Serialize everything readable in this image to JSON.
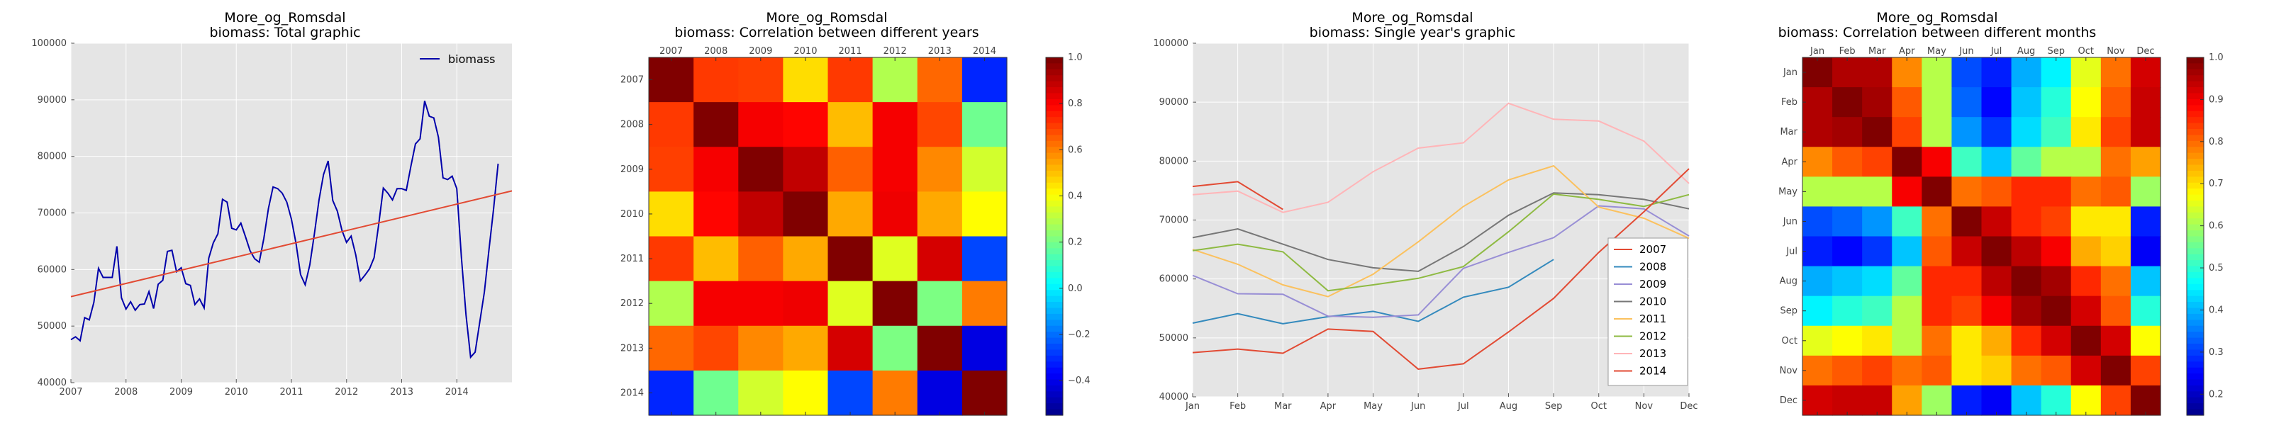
{
  "chart_data": [
    {
      "type": "line",
      "title": "More_og_Romsdal",
      "subtitle": "biomass: Total graphic",
      "xlabel": "",
      "ylabel": "",
      "xlim": [
        2007,
        2015
      ],
      "ylim": [
        40000,
        100000
      ],
      "x_ticks": [
        "2007",
        "2008",
        "2009",
        "2010",
        "2011",
        "2012",
        "2013",
        "2014"
      ],
      "y_ticks": [
        "40000",
        "50000",
        "60000",
        "70000",
        "80000",
        "90000",
        "100000"
      ],
      "grid": true,
      "legend": "top-right",
      "series": [
        {
          "name": "biomass",
          "color": "#0000aa",
          "x_start": 2007.0,
          "x_step": 0.08333,
          "values": [
            47600,
            48100,
            47400,
            51500,
            51100,
            54200,
            60200,
            58600,
            58600,
            58600,
            64100,
            55000,
            53000,
            54300,
            52800,
            53800,
            53900,
            56100,
            53100,
            57400,
            58100,
            63200,
            63400,
            59600,
            60300,
            57500,
            57200,
            53800,
            54800,
            53200,
            62000,
            64700,
            66300,
            72400,
            71900,
            67300,
            67000,
            68200,
            65800,
            63300,
            61900,
            61300,
            65500,
            70800,
            74600,
            74300,
            73500,
            71900,
            68900,
            64600,
            59100,
            57300,
            60800,
            66300,
            72300,
            76800,
            79200,
            72200,
            70300,
            66900,
            64800,
            65900,
            62600,
            58000,
            59000,
            60100,
            62100,
            68000,
            74400,
            73500,
            72300,
            74300,
            74300,
            74000,
            78200,
            82200,
            83100,
            89800,
            87100,
            86800,
            83400,
            76200,
            75900,
            76500,
            74300,
            62200,
            52000,
            44500,
            45400,
            50700,
            56000,
            63500,
            70700,
            78700
          ]
        },
        {
          "name": "trend",
          "color": "#e24a33",
          "x": [
            2007,
            2015
          ],
          "values": [
            55200,
            73900
          ]
        }
      ]
    },
    {
      "type": "heatmap",
      "title": "More_og_Romsdal",
      "subtitle": "biomass: Correlation between different years",
      "x_labels": [
        "2007",
        "2008",
        "2009",
        "2010",
        "2011",
        "2012",
        "2013",
        "2014"
      ],
      "y_labels": [
        "2007",
        "2008",
        "2009",
        "2010",
        "2011",
        "2012",
        "2013",
        "2014"
      ],
      "colorbar_range": [
        -0.55,
        1.0
      ],
      "colorbar_ticks": [
        "1.0",
        "0.8",
        "0.6",
        "0.4",
        "0.2",
        "0.0",
        "−0.2",
        "−0.4"
      ],
      "colormap": "jet",
      "values": [
        [
          1.0,
          0.72,
          0.71,
          0.47,
          0.72,
          0.3,
          0.65,
          -0.3
        ],
        [
          0.72,
          1.0,
          0.82,
          0.8,
          0.52,
          0.82,
          0.7,
          0.2
        ],
        [
          0.71,
          0.82,
          1.0,
          0.9,
          0.66,
          0.82,
          0.6,
          0.35
        ],
        [
          0.47,
          0.8,
          0.9,
          1.0,
          0.55,
          0.83,
          0.55,
          0.42
        ],
        [
          0.72,
          0.52,
          0.66,
          0.55,
          1.0,
          0.37,
          0.87,
          -0.25
        ],
        [
          0.3,
          0.82,
          0.82,
          0.83,
          0.37,
          1.0,
          0.22,
          0.62
        ],
        [
          0.65,
          0.7,
          0.6,
          0.55,
          0.87,
          0.22,
          1.0,
          -0.4
        ],
        [
          -0.3,
          0.2,
          0.35,
          0.42,
          -0.25,
          0.62,
          -0.4,
          1.0
        ]
      ]
    },
    {
      "type": "line",
      "title": "More_og_Romsdal",
      "subtitle": "biomass: Single year's graphic",
      "categories": [
        "Jan",
        "Feb",
        "Mar",
        "Apr",
        "May",
        "Jun",
        "Jul",
        "Aug",
        "Sep",
        "Oct",
        "Nov",
        "Dec"
      ],
      "ylim": [
        40000,
        100000
      ],
      "y_ticks": [
        "40000",
        "50000",
        "60000",
        "70000",
        "80000",
        "90000",
        "100000"
      ],
      "grid": true,
      "legend": "bottom-right",
      "series": [
        {
          "name": "2007",
          "color": "#e24a33",
          "values": [
            75700,
            76500,
            71800,
            null,
            null,
            null,
            null,
            null,
            null,
            null,
            null,
            null
          ]
        },
        {
          "name": "2008",
          "color": "#348abd",
          "values": [
            52500,
            54100,
            52400,
            53600,
            54500,
            52800,
            56900,
            58600,
            63300,
            null,
            null,
            null
          ]
        },
        {
          "name": "2009",
          "color": "#988ed5",
          "values": [
            60600,
            57500,
            57400,
            53700,
            53500,
            53900,
            61800,
            64500,
            67000,
            72400,
            71900,
            67300
          ]
        },
        {
          "name": "2010",
          "color": "#777777",
          "values": [
            67000,
            68500,
            65900,
            63300,
            61900,
            61300,
            65500,
            70800,
            74600,
            74300,
            73500,
            71900
          ]
        },
        {
          "name": "2011",
          "color": "#fbc15e",
          "values": [
            65000,
            62500,
            59000,
            57000,
            60800,
            66300,
            72300,
            76800,
            79200,
            72200,
            70300,
            66900
          ]
        },
        {
          "name": "2012",
          "color": "#8eba42",
          "values": [
            64800,
            65900,
            64600,
            58000,
            59000,
            60100,
            62100,
            68000,
            74400,
            73500,
            72300,
            74300
          ]
        },
        {
          "name": "2013",
          "color": "#ffb5b8",
          "values": [
            74300,
            74900,
            71300,
            73000,
            78200,
            82200,
            83100,
            89800,
            87100,
            86800,
            83400,
            76200
          ]
        },
        {
          "name": "2014",
          "color": "#e24a33",
          "values": [
            47500,
            48100,
            47400,
            51500,
            51100,
            44700,
            45600,
            51000,
            56700,
            64500,
            71400,
            78700
          ]
        }
      ]
    },
    {
      "type": "heatmap",
      "title": "More_og_Romsdal",
      "subtitle": "biomass: Correlation between different months",
      "x_labels": [
        "Jan",
        "Feb",
        "Mar",
        "Apr",
        "May",
        "Jun",
        "Jul",
        "Aug",
        "Sep",
        "Oct",
        "Nov",
        "Dec"
      ],
      "y_labels": [
        "Jan",
        "Feb",
        "Mar",
        "Apr",
        "May",
        "Jun",
        "Jul",
        "Aug",
        "Sep",
        "Oct",
        "Nov",
        "Dec"
      ],
      "colorbar_range": [
        0.15,
        1.0
      ],
      "colorbar_ticks": [
        "1.0",
        "0.9",
        "0.8",
        "0.7",
        "0.6",
        "0.5",
        "0.4",
        "0.3",
        "0.2"
      ],
      "colormap": "jet",
      "values": [
        [
          1.0,
          0.96,
          0.96,
          0.78,
          0.62,
          0.32,
          0.28,
          0.4,
          0.46,
          0.66,
          0.8,
          0.93
        ],
        [
          0.96,
          1.0,
          0.97,
          0.82,
          0.62,
          0.34,
          0.26,
          0.42,
          0.5,
          0.68,
          0.82,
          0.94
        ],
        [
          0.96,
          0.97,
          1.0,
          0.84,
          0.62,
          0.38,
          0.3,
          0.44,
          0.52,
          0.7,
          0.84,
          0.94
        ],
        [
          0.78,
          0.82,
          0.84,
          1.0,
          0.9,
          0.52,
          0.42,
          0.55,
          0.62,
          0.62,
          0.8,
          0.76
        ],
        [
          0.62,
          0.62,
          0.62,
          0.9,
          1.0,
          0.8,
          0.82,
          0.86,
          0.86,
          0.8,
          0.82,
          0.6
        ],
        [
          0.32,
          0.34,
          0.38,
          0.52,
          0.8,
          1.0,
          0.94,
          0.86,
          0.84,
          0.7,
          0.7,
          0.28
        ],
        [
          0.28,
          0.26,
          0.3,
          0.42,
          0.82,
          0.94,
          1.0,
          0.95,
          0.9,
          0.75,
          0.72,
          0.25
        ],
        [
          0.4,
          0.42,
          0.44,
          0.55,
          0.86,
          0.86,
          0.95,
          1.0,
          0.97,
          0.86,
          0.8,
          0.42
        ],
        [
          0.46,
          0.5,
          0.52,
          0.62,
          0.86,
          0.84,
          0.9,
          0.97,
          1.0,
          0.93,
          0.82,
          0.5
        ],
        [
          0.66,
          0.68,
          0.7,
          0.62,
          0.8,
          0.7,
          0.75,
          0.86,
          0.93,
          1.0,
          0.93,
          0.68
        ],
        [
          0.8,
          0.82,
          0.84,
          0.8,
          0.82,
          0.7,
          0.72,
          0.8,
          0.82,
          0.93,
          1.0,
          0.84
        ],
        [
          0.93,
          0.94,
          0.94,
          0.76,
          0.6,
          0.28,
          0.25,
          0.42,
          0.5,
          0.68,
          0.84,
          1.0
        ]
      ]
    }
  ]
}
